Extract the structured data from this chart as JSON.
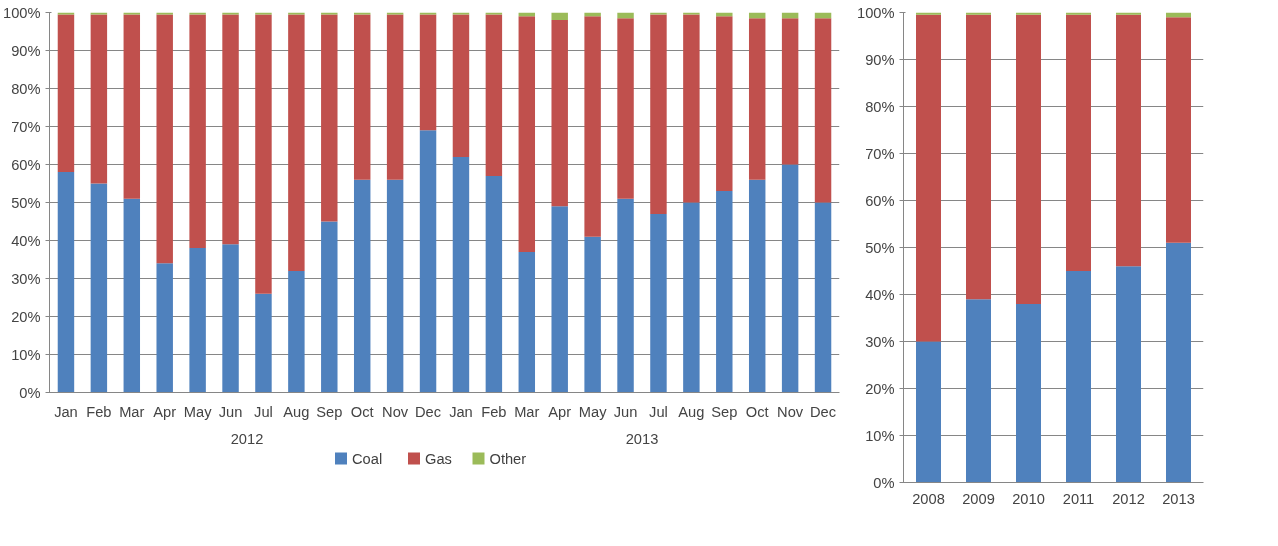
{
  "chart_data": [
    {
      "type": "bar",
      "stacked": true,
      "categories": [
        "Jan",
        "Feb",
        "Mar",
        "Apr",
        "May",
        "Jun",
        "Jul",
        "Aug",
        "Sep",
        "Oct",
        "Nov",
        "Dec",
        "Jan",
        "Feb",
        "Mar",
        "Apr",
        "May",
        "Jun",
        "Jul",
        "Aug",
        "Sep",
        "Oct",
        "Nov",
        "Dec"
      ],
      "series": [
        {
          "name": "Coal",
          "color": "#4f81bd",
          "values": [
            58,
            55,
            51,
            34,
            38,
            39,
            26,
            32,
            45,
            56,
            56,
            69,
            62,
            57,
            37,
            49,
            41,
            51,
            47,
            50,
            53,
            56,
            60,
            50
          ]
        },
        {
          "name": "Gas",
          "color": "#c0504d",
          "values": [
            41.5,
            44.5,
            48.5,
            65.5,
            61.5,
            60.5,
            73.5,
            67.5,
            54.5,
            43.5,
            43.5,
            30.5,
            37.5,
            42.5,
            62,
            49,
            58,
            47.5,
            52.5,
            49.5,
            46,
            42.5,
            38.5,
            48.5
          ]
        },
        {
          "name": "Other",
          "color": "#9bbb59",
          "values": [
            0.5,
            0.5,
            0.5,
            0.5,
            0.5,
            0.5,
            0.5,
            0.5,
            0.5,
            0.5,
            0.5,
            0.5,
            0.5,
            0.5,
            1,
            2,
            1,
            1.5,
            0.5,
            0.5,
            1,
            1.5,
            1.5,
            1.5
          ]
        }
      ],
      "annotations": [
        "2012",
        "2013"
      ],
      "ylim": [
        0,
        100
      ],
      "yticks": [
        {
          "value": 0,
          "label": "0%"
        },
        {
          "value": 10,
          "label": "10%"
        },
        {
          "value": 20,
          "label": "20%"
        },
        {
          "value": 30,
          "label": "30%"
        },
        {
          "value": 40,
          "label": "40%"
        },
        {
          "value": 50,
          "label": "50%"
        },
        {
          "value": 60,
          "label": "60%"
        },
        {
          "value": 70,
          "label": "70%"
        },
        {
          "value": 80,
          "label": "80%"
        },
        {
          "value": 90,
          "label": "90%"
        },
        {
          "value": 100,
          "label": "100%"
        }
      ],
      "grid": "y",
      "legend": "bottom"
    },
    {
      "type": "bar",
      "stacked": true,
      "categories": [
        "2008",
        "2009",
        "2010",
        "2011",
        "2012",
        "2013"
      ],
      "series": [
        {
          "color": "#4f81bd",
          "values": [
            30,
            39,
            38,
            45,
            46,
            51
          ]
        },
        {
          "color": "#c0504d",
          "values": [
            69.5,
            60.5,
            61.5,
            54.5,
            53.5,
            48
          ]
        },
        {
          "color": "#9bbb59",
          "values": [
            0.5,
            0.5,
            0.5,
            0.5,
            0.5,
            1
          ]
        }
      ],
      "ylim": [
        0,
        100
      ],
      "yticks": [
        {
          "value": 0,
          "label": "0%"
        },
        {
          "value": 10,
          "label": "10%"
        },
        {
          "value": 20,
          "label": "20%"
        },
        {
          "value": 30,
          "label": "30%"
        },
        {
          "value": 40,
          "label": "40%"
        },
        {
          "value": 50,
          "label": "50%"
        },
        {
          "value": 60,
          "label": "60%"
        },
        {
          "value": 70,
          "label": "70%"
        },
        {
          "value": 80,
          "label": "80%"
        },
        {
          "value": 90,
          "label": "90%"
        },
        {
          "value": 100,
          "label": "100%"
        }
      ],
      "grid": "y"
    }
  ]
}
